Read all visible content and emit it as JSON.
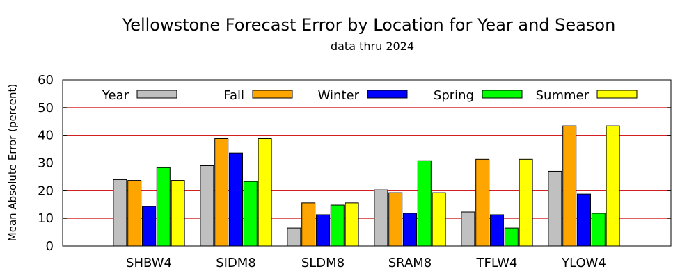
{
  "chart_data": {
    "type": "bar",
    "title": "Yellowstone Forecast Error by Location for Year and Season",
    "subtitle": "data thru 2024",
    "xlabel": "",
    "ylabel": "Mean Absolute Error (percent)",
    "ylim": [
      0,
      60
    ],
    "yticks": [
      "0",
      "10",
      "20",
      "30",
      "40",
      "50",
      "60"
    ],
    "grid": true,
    "legend_position": "top",
    "categories": [
      "SHBW4",
      "SIDM8",
      "SLDM8",
      "SRAM8",
      "TFLW4",
      "YLOW4"
    ],
    "series": [
      {
        "name": "Year",
        "color": "#c0c0c0",
        "values": [
          24.0,
          29.0,
          6.5,
          20.3,
          12.3,
          27.0
        ]
      },
      {
        "name": "Fall",
        "color": "#ffa500",
        "values": [
          23.7,
          38.8,
          15.6,
          19.3,
          31.3,
          43.4
        ]
      },
      {
        "name": "Winter",
        "color": "#0000ff",
        "values": [
          14.3,
          33.6,
          11.3,
          11.8,
          11.3,
          18.8
        ]
      },
      {
        "name": "Spring",
        "color": "#00ff00",
        "values": [
          28.3,
          23.3,
          14.8,
          30.8,
          6.5,
          11.8
        ]
      },
      {
        "name": "Summer",
        "color": "#ffff00",
        "values": [
          23.7,
          38.8,
          15.6,
          19.3,
          31.3,
          43.4
        ]
      }
    ],
    "grid_color": "#cc0000"
  }
}
